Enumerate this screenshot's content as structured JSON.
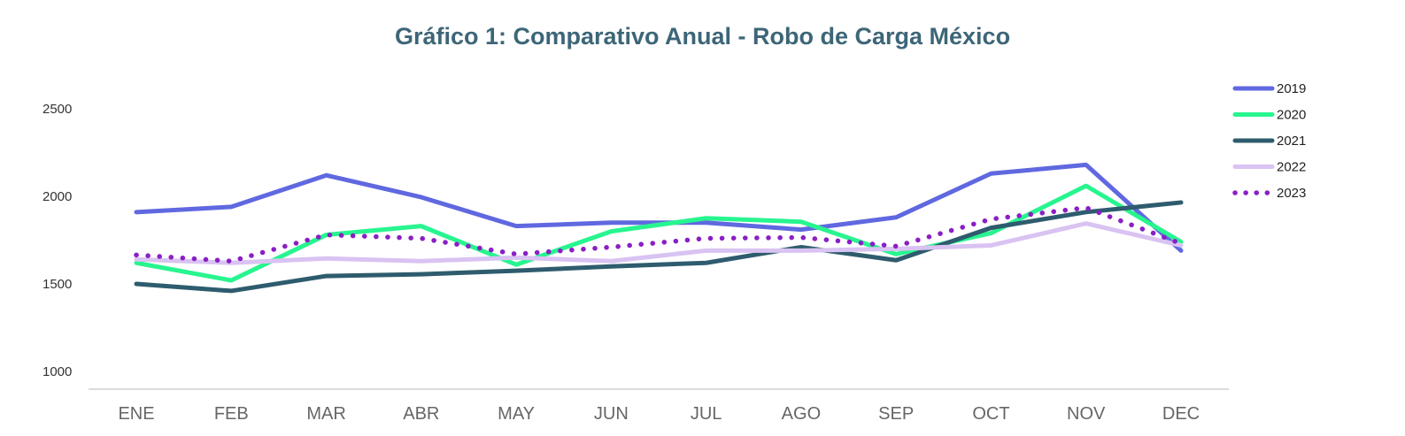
{
  "chart_data": {
    "type": "line",
    "title": "Gráfico 1: Comparativo Anual - Robo de Carga México",
    "xlabel": "",
    "ylabel": "",
    "categories": [
      "ENE",
      "FEB",
      "MAR",
      "ABR",
      "MAY",
      "JUN",
      "JUL",
      "AGO",
      "SEP",
      "OCT",
      "NOV",
      "DEC"
    ],
    "yticks": [
      1000,
      1500,
      2000,
      2500
    ],
    "ylim": [
      1000,
      2500
    ],
    "grid": false,
    "legend_position": "right",
    "series": [
      {
        "name": "2019",
        "color": "#6068e0",
        "style": "solid",
        "values": [
          1910,
          1940,
          2120,
          1995,
          1830,
          1850,
          1850,
          1810,
          1880,
          2130,
          2180,
          1690
        ]
      },
      {
        "name": "2020",
        "color": "#27f58f",
        "style": "solid",
        "values": [
          1620,
          1520,
          1780,
          1830,
          1610,
          1800,
          1875,
          1855,
          1670,
          1790,
          2060,
          1740
        ]
      },
      {
        "name": "2021",
        "color": "#2e5c6e",
        "style": "solid",
        "values": [
          1500,
          1460,
          1545,
          1555,
          1575,
          1600,
          1620,
          1710,
          1635,
          1820,
          1910,
          1965
        ]
      },
      {
        "name": "2022",
        "color": "#d9c3f2",
        "style": "solid",
        "values": [
          1640,
          1620,
          1645,
          1630,
          1650,
          1630,
          1690,
          1690,
          1700,
          1720,
          1845,
          1720
        ]
      },
      {
        "name": "2023",
        "color": "#8a1fc4",
        "style": "dotted",
        "values": [
          1665,
          1630,
          1780,
          1760,
          1670,
          1710,
          1760,
          1765,
          1715,
          1870,
          1935,
          1730
        ]
      }
    ]
  }
}
